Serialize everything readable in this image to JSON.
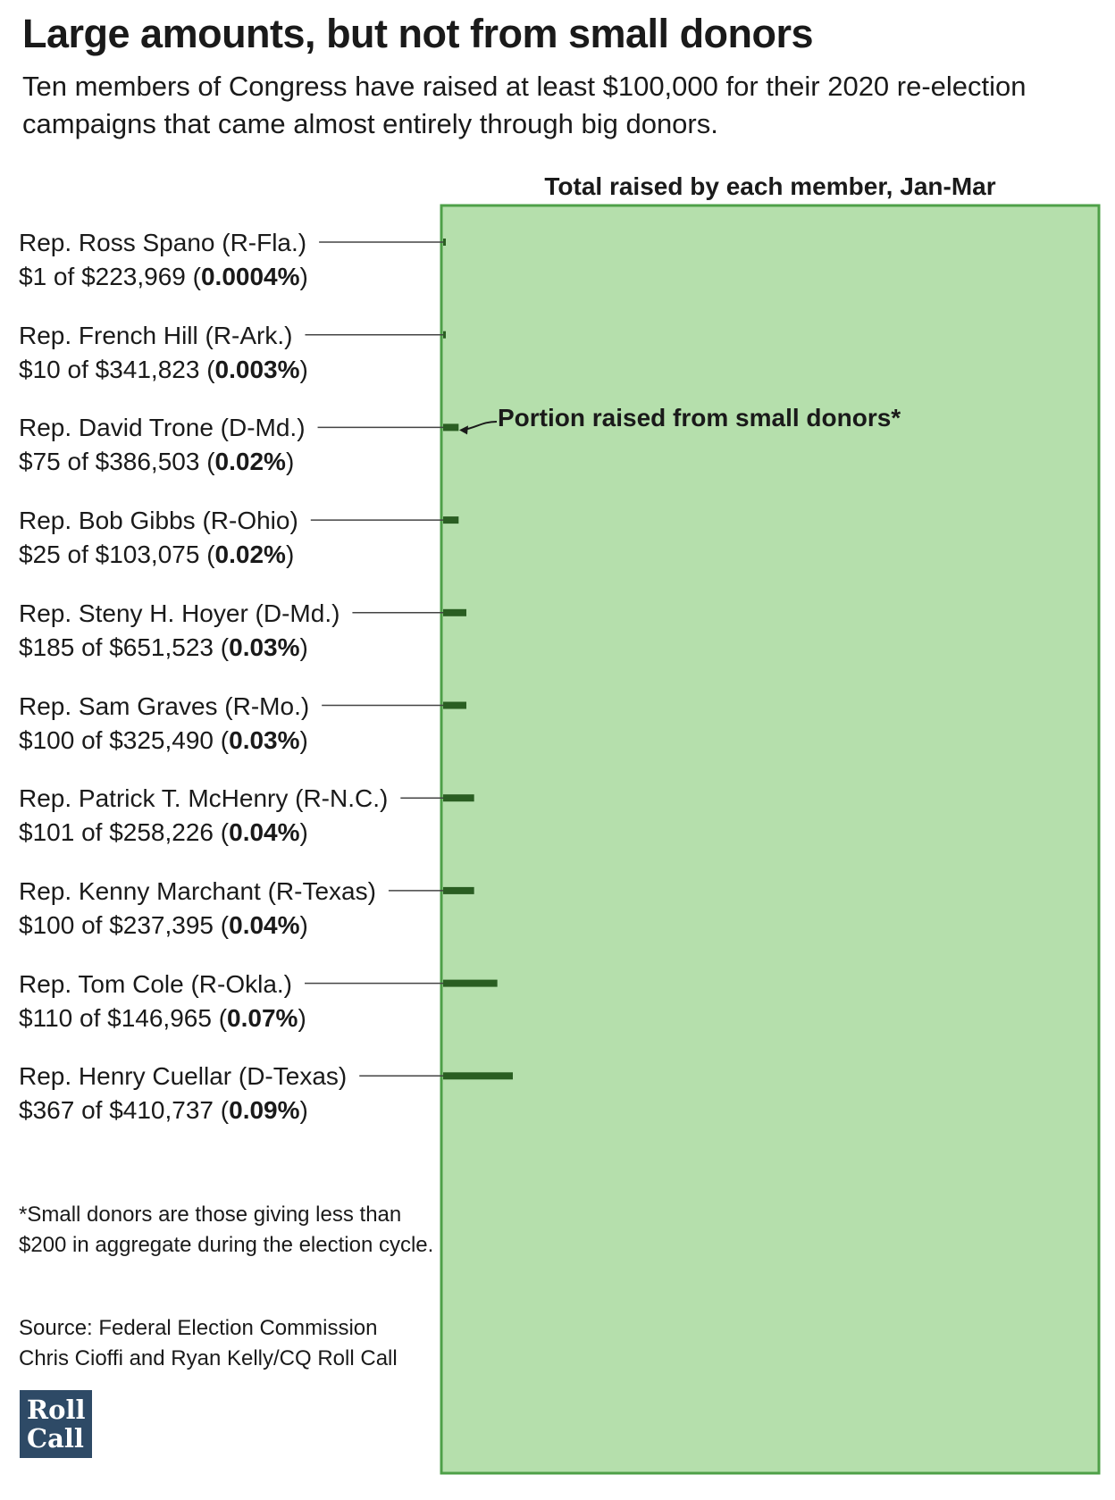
{
  "title": "Large amounts, but not from small donors",
  "subtitle": "Ten members of Congress have raised at least $100,000 for their 2020 re-election campaigns that came almost entirely through big donors.",
  "colors": {
    "panel_fill": "#b5dfac",
    "panel_border": "#4ea048",
    "bar": "#2a5e22",
    "leader": "#444444",
    "logo": "#2e4a66"
  },
  "footnote": "*Small donors are those giving less than $200 in aggregate during the election cycle.",
  "source_line1": "Source: Federal Election Commission",
  "source_line2": "Chris Cioffi and Ryan Kelly/CQ Roll Call",
  "logo_line1": "Roll",
  "logo_line2": "Call",
  "chart_data": {
    "type": "bar",
    "orientation": "horizontal",
    "header": "Total raised by each member, Jan-Mar",
    "annotation": "Portion raised from small donors*",
    "rows": [
      {
        "name": "Rep. Ross Spano (R-Fla.)",
        "small": "$1",
        "total": "$223,969",
        "pct_label": "0.0004%",
        "pct": 0.0004
      },
      {
        "name": "Rep. French Hill (R-Ark.)",
        "small": "$10",
        "total": "$341,823",
        "pct_label": "0.003%",
        "pct": 0.003
      },
      {
        "name": "Rep. David Trone (D-Md.)",
        "small": "$75",
        "total": "$386,503",
        "pct_label": "0.02%",
        "pct": 0.02
      },
      {
        "name": "Rep. Bob Gibbs (R-Ohio)",
        "small": "$25",
        "total": "$103,075",
        "pct_label": "0.02%",
        "pct": 0.02
      },
      {
        "name": "Rep. Steny H. Hoyer (D-Md.)",
        "small": "$185",
        "total": "$651,523",
        "pct_label": "0.03%",
        "pct": 0.03
      },
      {
        "name": "Rep. Sam Graves (R-Mo.)",
        "small": "$100",
        "total": "$325,490",
        "pct_label": "0.03%",
        "pct": 0.03
      },
      {
        "name": "Rep. Patrick T. McHenry (R-N.C.)",
        "small": "$101",
        "total": "$258,226",
        "pct_label": "0.04%",
        "pct": 0.04
      },
      {
        "name": "Rep. Kenny Marchant (R-Texas)",
        "small": "$100",
        "total": "$237,395",
        "pct_label": "0.04%",
        "pct": 0.04
      },
      {
        "name": "Rep. Tom Cole (R-Okla.)",
        "small": "$110",
        "total": "$146,965",
        "pct_label": "0.07%",
        "pct": 0.07
      },
      {
        "name": "Rep. Henry Cuellar (D-Texas)",
        "small": "$367",
        "total": "$410,737",
        "pct_label": "0.09%",
        "pct": 0.09
      }
    ]
  }
}
